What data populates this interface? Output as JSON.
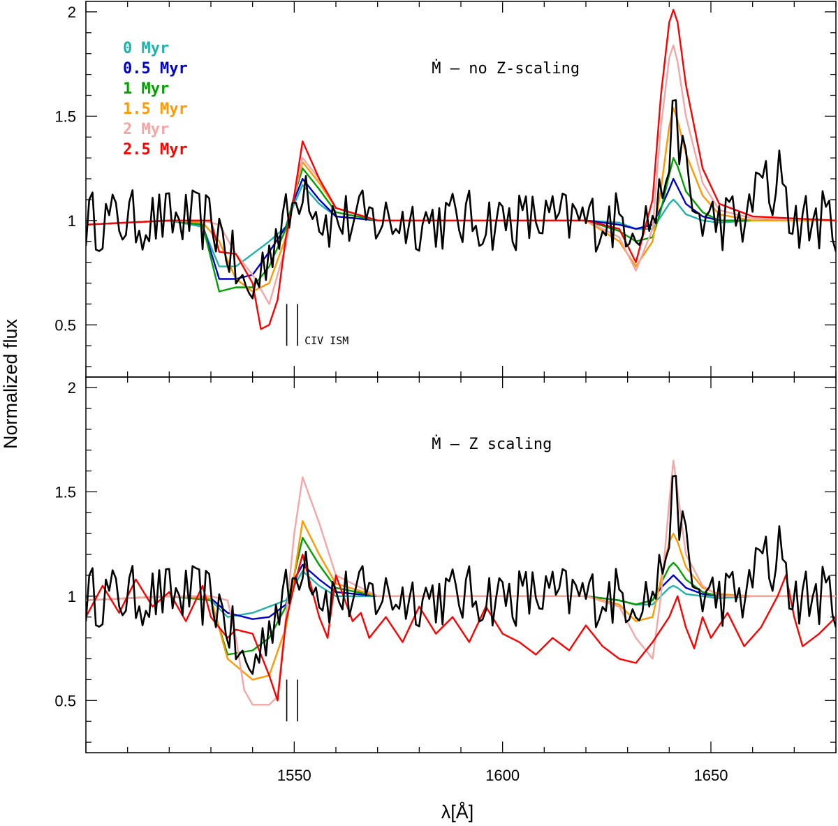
{
  "chart_data": {
    "type": "line",
    "xlabel": "λ[Å]",
    "ylabel": "Normalized flux",
    "xlim": [
      1500,
      1680
    ],
    "x_ticks": [
      "1550",
      "1600",
      "1650"
    ],
    "y_ticks": [
      "0.5",
      "1",
      "1.5",
      "2"
    ],
    "legend": {
      "placement": "top-left of upper panel",
      "entries": [
        {
          "label": "0 Myr",
          "color": "#20b2aa"
        },
        {
          "label": "0.5 Myr",
          "color": "#0000cc"
        },
        {
          "label": "1 Myr",
          "color": "#00a000"
        },
        {
          "label": "1.5 Myr",
          "color": "#ff9900"
        },
        {
          "label": "2 Myr",
          "color": "#f4a6a6"
        },
        {
          "label": "2.5 Myr",
          "color": "#ff0000"
        }
      ]
    },
    "panels": [
      {
        "label": "Ṁ – no Z-scaling",
        "ylim": [
          0.25,
          2.05
        ],
        "ism_marks": [
          1548.2,
          1550.8
        ],
        "ism_label": "CIV ISM",
        "observed_color": "#000000",
        "series": [
          {
            "name": "0 Myr",
            "color": "#20b2aa",
            "x": [
              1500,
              1520,
              1528,
              1532,
              1536,
              1540,
              1544,
              1548,
              1550,
              1552,
              1556,
              1560,
              1570,
              1600,
              1620,
              1628,
              1632,
              1636,
              1638,
              1640,
              1641,
              1642,
              1644,
              1648,
              1652,
              1660,
              1680
            ],
            "y": [
              0.98,
              1.0,
              0.97,
              0.78,
              0.78,
              0.84,
              0.9,
              0.97,
              1.08,
              1.17,
              1.08,
              1.02,
              1.0,
              1.0,
              1.0,
              0.99,
              0.96,
              0.96,
              1.02,
              1.08,
              1.1,
              1.08,
              1.03,
              1.0,
              0.99,
              1.0,
              1.0
            ]
          },
          {
            "name": "0.5 Myr",
            "color": "#0000cc",
            "x": [
              1500,
              1520,
              1528,
              1532,
              1536,
              1540,
              1544,
              1548,
              1550,
              1552,
              1556,
              1560,
              1570,
              1600,
              1620,
              1628,
              1632,
              1636,
              1638,
              1640,
              1641,
              1642,
              1644,
              1648,
              1652,
              1660,
              1680
            ],
            "y": [
              0.98,
              1.0,
              0.98,
              0.72,
              0.72,
              0.74,
              0.85,
              0.97,
              1.1,
              1.2,
              1.1,
              1.02,
              1.0,
              1.0,
              1.0,
              0.98,
              0.96,
              0.98,
              1.06,
              1.15,
              1.2,
              1.16,
              1.08,
              1.02,
              1.0,
              1.0,
              1.0
            ]
          },
          {
            "name": "1 Myr",
            "color": "#00a000",
            "x": [
              1500,
              1520,
              1528,
              1532,
              1536,
              1540,
              1544,
              1548,
              1550,
              1552,
              1556,
              1560,
              1570,
              1600,
              1620,
              1628,
              1632,
              1636,
              1638,
              1640,
              1641,
              1642,
              1644,
              1648,
              1652,
              1660,
              1680
            ],
            "y": [
              0.98,
              1.0,
              0.98,
              0.66,
              0.68,
              0.68,
              0.78,
              0.96,
              1.12,
              1.25,
              1.15,
              1.04,
              1.0,
              1.0,
              1.0,
              0.95,
              0.9,
              0.92,
              1.05,
              1.22,
              1.3,
              1.26,
              1.14,
              1.04,
              1.0,
              1.0,
              1.0
            ]
          },
          {
            "name": "1.5 Myr",
            "color": "#ff9900",
            "x": [
              1500,
              1520,
              1528,
              1532,
              1536,
              1540,
              1544,
              1548,
              1550,
              1552,
              1556,
              1560,
              1570,
              1600,
              1620,
              1628,
              1632,
              1636,
              1638,
              1640,
              1641,
              1642,
              1644,
              1648,
              1652,
              1660,
              1680
            ],
            "y": [
              0.98,
              1.0,
              0.99,
              0.9,
              0.72,
              0.66,
              0.7,
              0.92,
              1.12,
              1.28,
              1.18,
              1.06,
              1.0,
              1.0,
              1.0,
              0.9,
              0.78,
              0.9,
              1.15,
              1.45,
              1.54,
              1.48,
              1.32,
              1.12,
              1.03,
              1.0,
              1.0
            ]
          },
          {
            "name": "2 Myr",
            "color": "#f4a6a6",
            "x": [
              1500,
              1520,
              1528,
              1532,
              1536,
              1540,
              1544,
              1548,
              1550,
              1552,
              1556,
              1560,
              1570,
              1600,
              1620,
              1628,
              1632,
              1636,
              1638,
              1640,
              1641,
              1642,
              1644,
              1648,
              1652,
              1660,
              1680
            ],
            "y": [
              0.98,
              1.0,
              1.0,
              0.98,
              0.84,
              0.74,
              0.6,
              0.88,
              1.12,
              1.3,
              1.2,
              1.06,
              1.0,
              1.0,
              1.0,
              0.92,
              0.76,
              0.96,
              1.45,
              1.78,
              1.84,
              1.76,
              1.5,
              1.18,
              1.05,
              1.01,
              1.0
            ]
          },
          {
            "name": "2.5 Myr",
            "color": "#ff0000",
            "x": [
              1500,
              1520,
              1530,
              1532,
              1536,
              1540,
              1542,
              1544,
              1546,
              1548,
              1550,
              1552,
              1556,
              1560,
              1570,
              1600,
              1620,
              1628,
              1632,
              1636,
              1638,
              1640,
              1641,
              1642,
              1644,
              1648,
              1652,
              1660,
              1680
            ],
            "y": [
              0.98,
              1.0,
              1.0,
              0.85,
              0.84,
              0.7,
              0.48,
              0.5,
              0.62,
              0.92,
              1.12,
              1.38,
              1.2,
              1.06,
              1.0,
              1.0,
              1.0,
              0.96,
              0.8,
              1.1,
              1.6,
              1.95,
              2.01,
              1.95,
              1.65,
              1.25,
              1.08,
              1.02,
              1.0
            ]
          }
        ]
      },
      {
        "label": "Ṁ – Z scaling",
        "ylim": [
          0.25,
          2.05
        ],
        "ism_marks": [
          1548.2,
          1550.8
        ],
        "ism_label": "",
        "observed_color": "#000000",
        "series": [
          {
            "name": "0 Myr",
            "color": "#20b2aa",
            "x": [
              1500,
              1520,
              1530,
              1534,
              1540,
              1544,
              1548,
              1550,
              1552,
              1556,
              1560,
              1570,
              1600,
              1620,
              1628,
              1632,
              1636,
              1638,
              1640,
              1641,
              1642,
              1644,
              1648,
              1652,
              1660,
              1680
            ],
            "y": [
              0.98,
              1.0,
              0.98,
              0.9,
              0.92,
              0.95,
              0.98,
              1.05,
              1.12,
              1.05,
              1.0,
              1.0,
              1.0,
              1.0,
              0.98,
              0.96,
              0.96,
              1.0,
              1.04,
              1.05,
              1.04,
              1.01,
              1.0,
              0.99,
              1.0,
              1.0
            ]
          },
          {
            "name": "0.5 Myr",
            "color": "#0000cc",
            "x": [
              1500,
              1520,
              1530,
              1534,
              1540,
              1544,
              1548,
              1550,
              1552,
              1556,
              1560,
              1570,
              1600,
              1620,
              1628,
              1632,
              1636,
              1638,
              1640,
              1641,
              1642,
              1644,
              1648,
              1652,
              1660,
              1680
            ],
            "y": [
              0.98,
              1.0,
              0.99,
              0.92,
              0.89,
              0.9,
              0.96,
              1.08,
              1.15,
              1.08,
              1.02,
              1.0,
              1.0,
              1.0,
              0.98,
              0.96,
              0.98,
              1.04,
              1.08,
              1.1,
              1.08,
              1.04,
              1.01,
              1.0,
              1.0,
              1.0
            ]
          },
          {
            "name": "1 Myr",
            "color": "#00a000",
            "x": [
              1500,
              1520,
              1530,
              1534,
              1540,
              1544,
              1548,
              1550,
              1552,
              1556,
              1560,
              1570,
              1600,
              1620,
              1628,
              1632,
              1636,
              1638,
              1640,
              1641,
              1642,
              1644,
              1648,
              1652,
              1660,
              1680
            ],
            "y": [
              0.98,
              1.0,
              0.98,
              0.72,
              0.74,
              0.8,
              0.95,
              1.1,
              1.28,
              1.15,
              1.04,
              1.0,
              1.0,
              1.0,
              0.98,
              0.96,
              0.98,
              1.06,
              1.14,
              1.16,
              1.14,
              1.08,
              1.02,
              1.0,
              1.0,
              1.0
            ]
          },
          {
            "name": "1.5 Myr",
            "color": "#ff9900",
            "x": [
              1500,
              1520,
              1530,
              1534,
              1540,
              1544,
              1548,
              1550,
              1552,
              1556,
              1560,
              1570,
              1600,
              1620,
              1628,
              1632,
              1636,
              1638,
              1640,
              1641,
              1642,
              1644,
              1648,
              1652,
              1660,
              1680
            ],
            "y": [
              0.98,
              1.0,
              0.99,
              0.7,
              0.6,
              0.62,
              0.85,
              1.1,
              1.36,
              1.2,
              1.06,
              1.0,
              1.0,
              1.0,
              0.96,
              0.88,
              0.9,
              1.08,
              1.26,
              1.3,
              1.26,
              1.14,
              1.04,
              1.01,
              1.0,
              1.0
            ]
          },
          {
            "name": "2 Myr",
            "color": "#f4a6a6",
            "x": [
              1500,
              1520,
              1530,
              1534,
              1536,
              1538,
              1540,
              1544,
              1546,
              1548,
              1550,
              1552,
              1556,
              1560,
              1570,
              1600,
              1620,
              1628,
              1632,
              1636,
              1638,
              1640,
              1641,
              1642,
              1644,
              1648,
              1652,
              1660,
              1680
            ],
            "y": [
              0.98,
              1.0,
              1.0,
              0.98,
              0.8,
              0.55,
              0.48,
              0.48,
              0.52,
              0.9,
              1.3,
              1.57,
              1.35,
              1.1,
              1.0,
              1.0,
              1.0,
              0.95,
              0.8,
              0.7,
              1.0,
              1.45,
              1.65,
              1.5,
              1.2,
              1.05,
              1.0,
              1.0,
              1.0
            ]
          },
          {
            "name": "2.5 Myr",
            "color": "#ff0000",
            "x": [
              1500,
              1504,
              1508,
              1512,
              1516,
              1520,
              1524,
              1528,
              1530,
              1532,
              1534,
              1536,
              1540,
              1544,
              1546,
              1548,
              1550,
              1552,
              1554,
              1556,
              1558,
              1560,
              1564,
              1566,
              1568,
              1572,
              1576,
              1580,
              1584,
              1588,
              1592,
              1596,
              1600,
              1604,
              1608,
              1612,
              1616,
              1620,
              1624,
              1628,
              1632,
              1636,
              1640,
              1642,
              1644,
              1646,
              1648,
              1650,
              1654,
              1658,
              1662,
              1666,
              1668,
              1670,
              1672,
              1676,
              1680
            ],
            "y": [
              0.9,
              1.05,
              0.92,
              1.08,
              0.95,
              1.02,
              0.88,
              1.05,
              0.9,
              0.85,
              0.8,
              0.84,
              0.82,
              0.62,
              0.5,
              0.88,
              1.05,
              1.2,
              1.05,
              0.9,
              0.8,
              1.1,
              0.88,
              0.92,
              0.8,
              0.9,
              0.78,
              0.95,
              0.82,
              0.9,
              0.78,
              0.95,
              0.82,
              0.78,
              0.72,
              0.8,
              0.74,
              0.86,
              0.76,
              0.7,
              0.68,
              0.78,
              0.9,
              1.0,
              0.85,
              0.75,
              0.9,
              0.8,
              0.92,
              0.76,
              0.85,
              1.0,
              1.1,
              0.9,
              0.76,
              0.82,
              0.9
            ]
          }
        ]
      }
    ]
  }
}
